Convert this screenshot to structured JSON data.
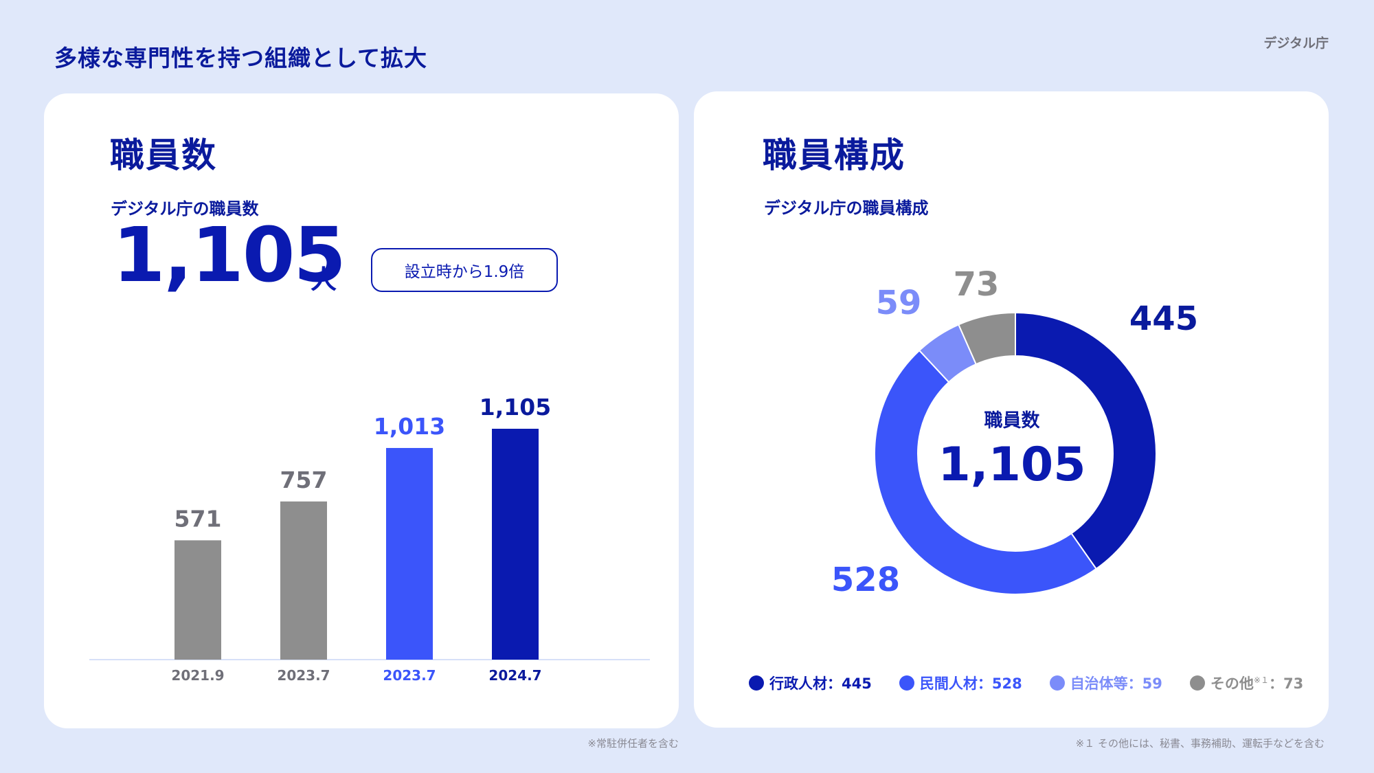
{
  "header": {
    "title": "多様な専門性を持つ組織として拡大",
    "agency": "デジタル庁"
  },
  "left": {
    "title": "職員数",
    "subtitle": "デジタル庁の職員数",
    "total": "1,105",
    "unit": "人",
    "badge": "設立時から1.9倍",
    "note": "※常駐併任者を含む"
  },
  "right": {
    "title": "職員構成",
    "subtitle": "デジタル庁の職員構成",
    "center_label": "職員数",
    "center_value": "1,105",
    "note": "※１ その他には、秘書、事務補助、運転手などを含む",
    "legend": [
      {
        "label": "行政人材：445",
        "color": "#0a1ab0"
      },
      {
        "label": "民間人材：528",
        "color": "#3b55fa"
      },
      {
        "label": "自治体等：59",
        "color": "#7b8cf9"
      },
      {
        "label": "その他",
        "sup": "※１",
        "value": "：73",
        "color": "#8e8e8e"
      }
    ]
  },
  "chart_data": [
    {
      "type": "bar",
      "categories": [
        "2021.9",
        "2023.7",
        "2023.7",
        "2024.7"
      ],
      "values": [
        571,
        757,
        1013,
        1105
      ],
      "value_labels": [
        "571",
        "757",
        "1,013",
        "1,105"
      ],
      "colors": [
        "#8e8e8e",
        "#8e8e8e",
        "#3b55fa",
        "#0a1ab0"
      ],
      "label_colors": [
        "#6f6f78",
        "#6f6f78",
        "#3b55fa",
        "#0a1a9c"
      ],
      "title": "",
      "xlabel": "",
      "ylabel": "",
      "ylim": [
        0,
        1105
      ],
      "grid": false
    },
    {
      "type": "pie",
      "variant": "donut",
      "labels": [
        "行政人材",
        "民間人材",
        "自治体等",
        "その他"
      ],
      "values": [
        445,
        528,
        59,
        73
      ],
      "value_labels": [
        "445",
        "528",
        "59",
        "73"
      ],
      "colors": [
        "#0a1ab0",
        "#3b55fa",
        "#7b8cf9",
        "#8e8e8e"
      ],
      "label_colors": [
        "#0a1a9c",
        "#3b55fa",
        "#7b8cf9",
        "#8e8e8e"
      ],
      "center_text": "1,105",
      "start": "12 o'clock",
      "direction": "clockwise"
    }
  ]
}
